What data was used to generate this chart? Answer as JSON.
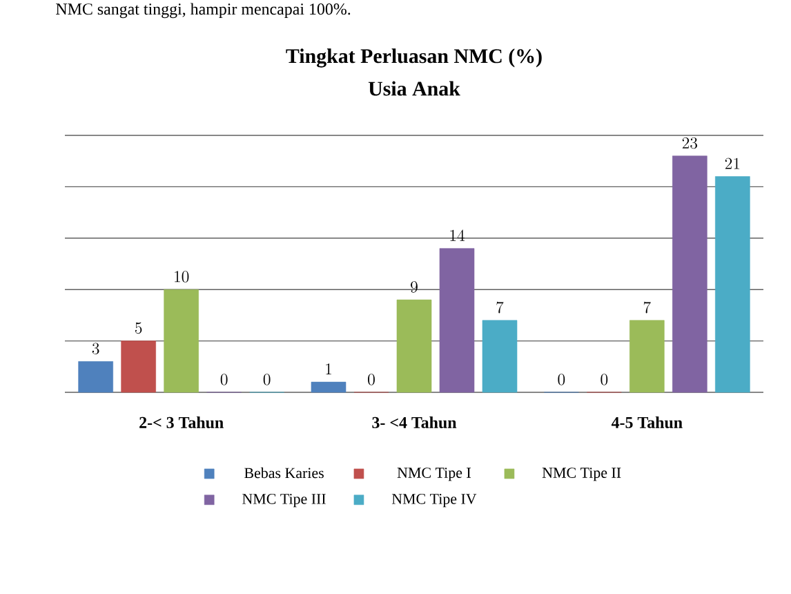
{
  "chart_data": {
    "type": "bar",
    "title": "Tingkat Perluasan NMC (%)",
    "subtitle": "Usia Anak",
    "annotations": [
      "NMC sangat tinggi, hampir mencapai 100%."
    ],
    "categories": [
      "2-< 3 Tahun",
      "3- <4 Tahun",
      "4-5 Tahun"
    ],
    "series": [
      {
        "name": "Bebas Karies",
        "color": "#4f81bd",
        "values": [
          3,
          1,
          0
        ]
      },
      {
        "name": "NMC Tipe I",
        "color": "#c0504d",
        "values": [
          5,
          0,
          0
        ]
      },
      {
        "name": "NMC Tipe II",
        "color": "#9bbb59",
        "values": [
          10,
          9,
          7
        ]
      },
      {
        "name": "NMC Tipe III",
        "color": "#8064a2",
        "values": [
          0,
          14,
          23
        ]
      },
      {
        "name": "NMC Tipe IV",
        "color": "#4bacc6",
        "values": [
          0,
          7,
          21
        ]
      }
    ],
    "ylim": [
      0,
      25
    ],
    "yticks": [
      {
        "value": 0,
        "label": null
      },
      {
        "value": 5,
        "label": null
      },
      {
        "value": 10,
        "label": null
      },
      {
        "value": 15,
        "label": null
      },
      {
        "value": 20,
        "label": null
      },
      {
        "value": 25,
        "label": null
      }
    ],
    "tick_labels": "x",
    "grid": "y",
    "data_labels": true,
    "legend": "bottom"
  }
}
